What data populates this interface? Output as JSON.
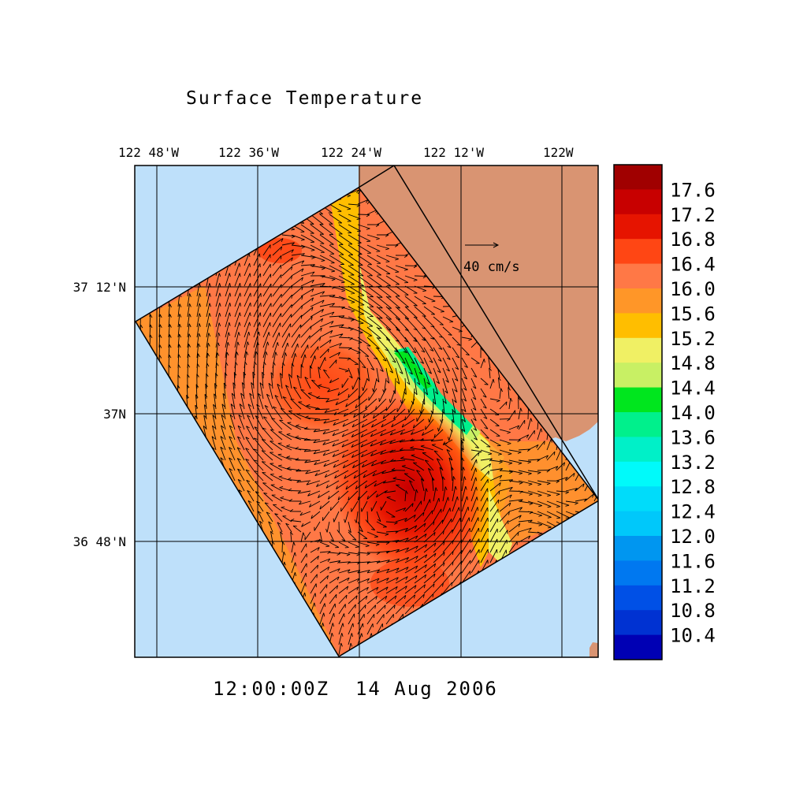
{
  "title": "Surface Temperature",
  "timestamp": "12:00:00Z  14 Aug 2006",
  "reference_vector": {
    "label": "40 cm/s",
    "magnitude_cm_s": 40
  },
  "axes": {
    "lon_ticks": [
      "122 48'W",
      "122 36'W",
      "122 24'W",
      "122 12'W",
      "122W"
    ],
    "lat_ticks": [
      "37 12'N",
      "37N",
      "36 48'N"
    ]
  },
  "colors": {
    "ocean": "#bee0fa",
    "land": "#d99472",
    "grid": "#000000"
  },
  "colorbar": {
    "labels": [
      "17.6",
      "17.2",
      "16.8",
      "16.4",
      "16.0",
      "15.6",
      "15.2",
      "14.8",
      "14.4",
      "14.0",
      "13.6",
      "13.2",
      "12.8",
      "12.4",
      "12.0",
      "11.6",
      "11.2",
      "10.8",
      "10.4"
    ],
    "levels": [
      {
        "color": "#a00000"
      },
      {
        "color": "#c80000"
      },
      {
        "color": "#e61400"
      },
      {
        "color": "#ff4614"
      },
      {
        "color": "#ff7846"
      },
      {
        "color": "#ff9628"
      },
      {
        "color": "#ffbe00"
      },
      {
        "color": "#f0f064"
      },
      {
        "color": "#c8f064"
      },
      {
        "color": "#00e61e"
      },
      {
        "color": "#00f08c"
      },
      {
        "color": "#00f0c8"
      },
      {
        "color": "#00fafa"
      },
      {
        "color": "#00dcfa"
      },
      {
        "color": "#00c8fa"
      },
      {
        "color": "#0096f0"
      },
      {
        "color": "#0078f0"
      },
      {
        "color": "#0050e6"
      },
      {
        "color": "#0032d2"
      },
      {
        "color": "#0000b4"
      }
    ]
  }
}
